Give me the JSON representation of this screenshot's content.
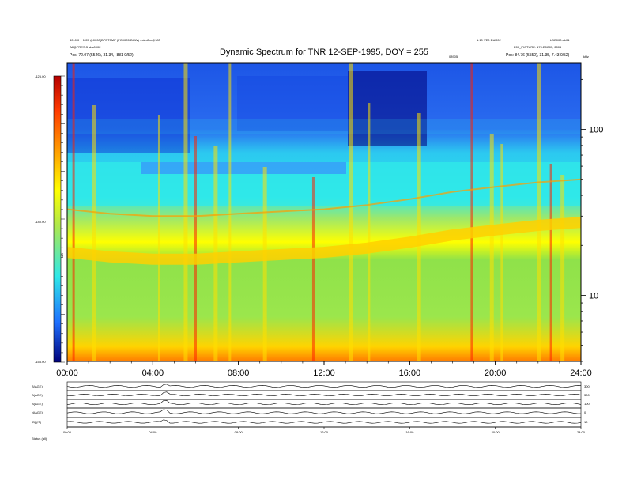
{
  "header": {
    "title": "Dynamic Spectrum for TNR 12-SEP-1995, DOY = 255",
    "left_line1": "3010.0 + 1.05 @0000(BPDT0MP (FO0005(BOW) - cimi0m@18F",
    "left_line2": "A8@FRES.3 abs0002",
    "left_line3": "Pos:  72.07 (5546), 31.34, -881 0/52)",
    "right_line1": "1.10 VE0 DUR02",
    "right_line2": "LDB000:ab01",
    "right_line3": "E00_PICTURE. 170.E0C03, 2005",
    "right_line4": "Pos:  84.76 (5550), 31.35, 7.43 0/52)",
    "mid_tag": "08905",
    "unit_tag": "kHz"
  },
  "colorbar": {
    "labels": [
      "-125.00",
      "-140.00",
      "-155.00"
    ],
    "axis_label": "dB",
    "colors": [
      "#b40000",
      "#ff3a00",
      "#ff9c00",
      "#ffff00",
      "#b0e84a",
      "#2fe8e8",
      "#1e70ff",
      "#00007a"
    ]
  },
  "chart_data": {
    "type": "heatmap",
    "title": "Dynamic Spectrum for TNR 12-SEP-1995, DOY = 255",
    "xlabel": "",
    "ylabel": "",
    "x_ticks": [
      "00:00",
      "04:00",
      "08:00",
      "12:00",
      "16:00",
      "20:00",
      "24:00"
    ],
    "x_range_hours": [
      0,
      24
    ],
    "y_ticks": [
      10,
      100
    ],
    "y_scale": "log",
    "y_range": [
      4,
      250
    ],
    "y_unit": "kHz",
    "color_range": [
      -155,
      -125
    ],
    "plasma_line": [
      {
        "t": 0.0,
        "f": 33
      },
      {
        "t": 2.0,
        "f": 31
      },
      {
        "t": 4.0,
        "f": 30
      },
      {
        "t": 6.0,
        "f": 30
      },
      {
        "t": 8.0,
        "f": 31
      },
      {
        "t": 10.0,
        "f": 32
      },
      {
        "t": 12.0,
        "f": 33
      },
      {
        "t": 14.0,
        "f": 35
      },
      {
        "t": 16.0,
        "f": 38
      },
      {
        "t": 18.0,
        "f": 42
      },
      {
        "t": 20.0,
        "f": 45
      },
      {
        "t": 22.0,
        "f": 48
      },
      {
        "t": 24.0,
        "f": 50
      }
    ],
    "bursts_hours": [
      0.3,
      1.2,
      4.3,
      5.5,
      6.0,
      6.9,
      7.6,
      9.2,
      11.5,
      13.2,
      14.1,
      16.4,
      18.9,
      19.8,
      20.3,
      22.0,
      22.6,
      23.1
    ]
  },
  "bottom_panels": {
    "labels": [
      "B(AGE)",
      "B(AGE)",
      "B(AGE)",
      "N(AGE)",
      "[B]/(IT)"
    ],
    "right_labels": [
      "300",
      "300",
      "100",
      "0",
      "10"
    ],
    "x_ticks": [
      "00:00",
      "04:00",
      "08:00",
      "12:00",
      "16:00",
      "20:00",
      "24:00"
    ],
    "footer_left": "Status   (all)"
  }
}
